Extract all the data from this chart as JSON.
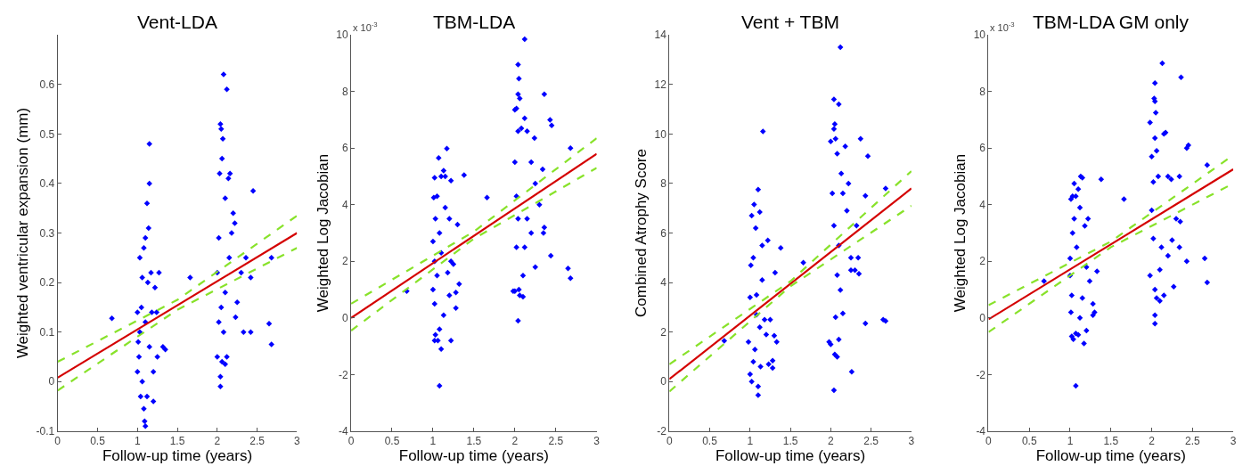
{
  "chart_data": [
    {
      "type": "scatter",
      "title": "Vent-LDA",
      "xlabel": "Follow-up time (years)",
      "ylabel": "Weighted ventricular expansion (mm)",
      "xlim": [
        0,
        3
      ],
      "xticks": [
        0,
        0.5,
        1,
        1.5,
        2,
        2.5,
        3
      ],
      "ylim": [
        -0.1,
        0.7
      ],
      "yticks": [
        -0.1,
        0,
        0.1,
        0.2,
        0.3,
        0.4,
        0.5,
        0.6
      ],
      "series": [
        {
          "marker": "diamond",
          "color": "#0000ff",
          "x": [
            1.0,
            1.02,
            1.03,
            1.05,
            1.06,
            1.08,
            1.1,
            1.12,
            1.15,
            1.15,
            1.14,
            1.0,
            1.01,
            1.04,
            1.08,
            1.09,
            1.1,
            1.12,
            1.2,
            1.06,
            1.13,
            1.17,
            1.22,
            1.1,
            1.15,
            1.2,
            1.25,
            1.27,
            1.32,
            1.35,
            1.03,
            1.18,
            1.24,
            0.68,
            1.66,
            2.0,
            2.02,
            2.03,
            2.04,
            2.05,
            2.06,
            2.07,
            2.08,
            2.12,
            2.1,
            2.14,
            2.16,
            2.04,
            2.04,
            2.06,
            2.1,
            2.12,
            2.08,
            2.02,
            2.05,
            2.1,
            2.15,
            2.2,
            2.22,
            2.25,
            2.23,
            2.3,
            2.33,
            2.36,
            2.42,
            2.42,
            2.45,
            2.65,
            2.68,
            2.68,
            2.18,
            2.0
          ],
          "values": [
            0.02,
            0.05,
            0.1,
            0.15,
            0.21,
            0.27,
            0.29,
            0.36,
            0.48,
            0.4,
            0.31,
            0.14,
            0.08,
            -0.03,
            -0.055,
            -0.08,
            -0.09,
            -0.03,
            -0.04,
            0.0,
            0.2,
            0.22,
            0.19,
            0.12,
            0.07,
            0.02,
            0.05,
            0.22,
            0.07,
            0.065,
            0.25,
            0.14,
            0.14,
            0.128,
            0.21,
            0.05,
            0.29,
            0.42,
            0.52,
            0.51,
            0.45,
            0.49,
            0.62,
            0.59,
            0.37,
            0.41,
            0.42,
            -0.01,
            0.01,
            0.04,
            0.035,
            0.05,
            0.1,
            0.12,
            0.15,
            0.18,
            0.25,
            0.34,
            0.32,
            0.16,
            0.13,
            0.22,
            0.1,
            0.25,
            0.1,
            0.21,
            0.385,
            0.117,
            0.075,
            0.25,
            0.3,
            0.22
          ]
        },
        {
          "type": "line",
          "line_style": "solid",
          "color": "#d40000",
          "x": [
            0,
            3
          ],
          "values": [
            0.008,
            0.3
          ]
        },
        {
          "type": "line",
          "line_style": "dashed",
          "color": "#88e22a",
          "x": [
            0,
            1.5,
            3
          ],
          "values": [
            0.04,
            0.165,
            0.335
          ]
        },
        {
          "type": "line",
          "line_style": "dashed",
          "color": "#88e22a",
          "x": [
            0,
            1.5,
            3
          ],
          "values": [
            -0.018,
            0.145,
            0.27
          ]
        }
      ]
    },
    {
      "type": "scatter",
      "title": "TBM-LDA",
      "xlabel": "Follow-up time (years)",
      "ylabel": "Weighted Log Jacobian",
      "annotations": [
        "x 10$^{-3}$"
      ],
      "xlim": [
        0,
        3
      ],
      "xticks": [
        0,
        0.5,
        1,
        1.5,
        2,
        2.5,
        3
      ],
      "ylim": [
        -4,
        10
      ],
      "yticks": [
        -4,
        -2,
        0,
        2,
        4,
        6,
        8,
        10
      ],
      "series": [
        {
          "marker": "diamond",
          "color": "#0000ff",
          "x": [
            1.0,
            1.01,
            1.02,
            1.05,
            1.07,
            1.1,
            1.13,
            1.15,
            1.17,
            1.22,
            1.15,
            1.03,
            1.08,
            1.02,
            1.05,
            1.0,
            1.02,
            1.03,
            1.02,
            1.06,
            1.08,
            1.1,
            1.08,
            1.22,
            1.13,
            1.2,
            1.18,
            1.22,
            1.25,
            1.28,
            1.28,
            1.32,
            1.3,
            1.38,
            1.2,
            1.1,
            0.68,
            1.66,
            1.98,
            2.0,
            2.0,
            2.02,
            2.04,
            2.04,
            2.05,
            2.06,
            2.12,
            2.12,
            2.08,
            2.04,
            2.0,
            2.02,
            2.04,
            2.02,
            2.05,
            2.04,
            2.06,
            2.1,
            2.1,
            2.12,
            2.15,
            2.15,
            2.2,
            2.2,
            2.24,
            2.25,
            2.25,
            2.3,
            2.34,
            2.35,
            2.36,
            2.36,
            2.43,
            2.45,
            2.44,
            2.65,
            2.68,
            2.68
          ],
          "values": [
            2.7,
            4.25,
            4.95,
            4.3,
            5.65,
            5.0,
            5.2,
            5.0,
            5.98,
            4.85,
            3.9,
            3.5,
            3.0,
            2.0,
            1.5,
            1.0,
            0.5,
            -0.6,
            -0.8,
            -0.8,
            -0.4,
            -1.1,
            -2.4,
            -0.8,
            0.1,
            0.8,
            1.6,
            2.0,
            1.9,
            0.35,
            0.9,
            1.2,
            3.3,
            5.05,
            3.5,
            2.3,
            0.95,
            4.25,
            0.95,
            0.95,
            7.35,
            7.4,
            7.9,
            8.95,
            8.45,
            7.75,
            9.85,
            7.05,
            6.7,
            6.6,
            5.5,
            4.3,
            3.5,
            2.5,
            1.0,
            -0.1,
            0.8,
            0.75,
            1.5,
            2.5,
            3.5,
            6.6,
            5.5,
            3.0,
            6.35,
            4.75,
            1.8,
            4.0,
            5.25,
            3.0,
            7.9,
            3.2,
            7.0,
            6.8,
            2.2,
            1.75,
            1.4,
            6.0
          ]
        },
        {
          "type": "line",
          "line_style": "solid",
          "color": "#d40000",
          "x": [
            0,
            3
          ],
          "values": [
            0,
            5.8
          ]
        },
        {
          "type": "line",
          "line_style": "dashed",
          "color": "#88e22a",
          "x": [
            0,
            1.5,
            3
          ],
          "values": [
            0.5,
            3.05,
            6.35
          ]
        },
        {
          "type": "line",
          "line_style": "dashed",
          "color": "#88e22a",
          "x": [
            0,
            1.5,
            3
          ],
          "values": [
            -0.45,
            2.8,
            5.3
          ]
        }
      ]
    },
    {
      "type": "scatter",
      "title": "Vent + TBM",
      "xlabel": "Follow-up time (years)",
      "ylabel": "Combined Atrophy Score",
      "xlim": [
        0,
        3
      ],
      "xticks": [
        0,
        0.5,
        1,
        1.5,
        2,
        2.5,
        3
      ],
      "ylim": [
        -2,
        14
      ],
      "yticks": [
        -2,
        0,
        2,
        4,
        6,
        8,
        10,
        12,
        14
      ],
      "series": [
        {
          "marker": "diamond",
          "color": "#0000ff",
          "x": [
            1.0,
            0.98,
            1.01,
            1.02,
            1.05,
            1.07,
            1.1,
            1.12,
            1.16,
            1.15,
            1.04,
            1.0,
            1.02,
            1.04,
            1.06,
            1.1,
            1.1,
            1.13,
            1.12,
            1.08,
            1.15,
            1.18,
            1.2,
            1.22,
            1.23,
            1.25,
            1.28,
            1.28,
            1.3,
            1.31,
            1.33,
            1.38,
            1.08,
            0.68,
            1.66,
            1.98,
            2.0,
            2.0,
            2.02,
            2.04,
            2.04,
            2.05,
            2.06,
            2.08,
            2.1,
            2.12,
            2.13,
            2.04,
            2.05,
            2.08,
            2.1,
            2.06,
            2.08,
            2.04,
            2.1,
            2.12,
            2.15,
            2.15,
            2.18,
            2.2,
            2.22,
            2.25,
            2.26,
            2.25,
            2.3,
            2.32,
            2.34,
            2.35,
            2.37,
            2.43,
            2.43,
            2.46,
            2.65,
            2.68,
            2.68
          ],
          "values": [
            3.4,
            1.6,
            4.7,
            6.7,
            7.15,
            6.2,
            7.75,
            6.85,
            10.1,
            5.5,
            5.0,
            0.3,
            0.0,
            0.8,
            1.3,
            -0.2,
            -0.55,
            0.6,
            2.2,
            3.5,
            4.1,
            2.5,
            1.9,
            5.7,
            0.7,
            2.5,
            0.55,
            0.85,
            1.85,
            4.4,
            1.6,
            5.4,
            2.7,
            1.65,
            4.8,
            1.6,
            1.5,
            9.7,
            7.6,
            10.2,
            11.4,
            10.4,
            9.8,
            9.2,
            11.2,
            13.5,
            8.4,
            -0.35,
            1.1,
            1.0,
            1.7,
            2.6,
            4.3,
            6.3,
            5.5,
            3.7,
            2.75,
            7.6,
            9.5,
            6.9,
            8.0,
            4.5,
            0.4,
            5.0,
            4.5,
            6.3,
            5.0,
            4.35,
            9.8,
            2.35,
            7.5,
            9.1,
            2.5,
            2.45,
            7.8
          ]
        },
        {
          "type": "line",
          "line_style": "solid",
          "color": "#d40000",
          "x": [
            0,
            3
          ],
          "values": [
            0.1,
            7.8
          ]
        },
        {
          "type": "line",
          "line_style": "dashed",
          "color": "#88e22a",
          "x": [
            0,
            1.5,
            3
          ],
          "values": [
            0.7,
            4.05,
            8.5
          ]
        },
        {
          "type": "line",
          "line_style": "dashed",
          "color": "#88e22a",
          "x": [
            0,
            1.5,
            3
          ],
          "values": [
            -0.4,
            3.85,
            7.1
          ]
        }
      ]
    },
    {
      "type": "scatter",
      "title": "TBM-LDA GM only",
      "xlabel": "Follow-up time (years)",
      "ylabel": "Weighted Log Jacobian",
      "annotations": [
        "x 10$^{-3}$"
      ],
      "xlim": [
        0,
        3
      ],
      "xticks": [
        0,
        0.5,
        1,
        1.5,
        2,
        2.5,
        3
      ],
      "ylim": [
        -4,
        10
      ],
      "yticks": [
        -4,
        -2,
        0,
        2,
        4,
        6,
        8,
        10
      ],
      "series": [
        {
          "marker": "diamond",
          "color": "#0000ff",
          "x": [
            1.0,
            1.01,
            1.03,
            1.05,
            1.07,
            1.1,
            1.13,
            1.15,
            1.12,
            1.05,
            1.03,
            1.0,
            1.02,
            1.01,
            1.02,
            1.04,
            1.07,
            1.1,
            1.17,
            1.07,
            1.12,
            1.15,
            1.2,
            1.2,
            1.22,
            1.18,
            1.24,
            1.28,
            1.28,
            1.3,
            1.33,
            1.38,
            1.08,
            0.68,
            1.66,
            1.98,
            1.98,
            2.0,
            2.02,
            2.03,
            2.04,
            2.04,
            2.05,
            2.04,
            2.13,
            2.06,
            2.08,
            2.0,
            2.02,
            2.04,
            2.04,
            2.04,
            2.06,
            2.1,
            2.1,
            2.12,
            2.15,
            2.15,
            2.17,
            2.2,
            2.2,
            2.24,
            2.25,
            2.27,
            2.3,
            2.34,
            2.34,
            2.35,
            2.36,
            2.43,
            2.45,
            2.43,
            2.65,
            2.68,
            2.68
          ],
          "values": [
            2.1,
            4.2,
            4.3,
            4.75,
            4.3,
            4.55,
            5.0,
            4.95,
            3.9,
            3.5,
            3.0,
            1.5,
            0.8,
            0.2,
            -0.65,
            -0.75,
            -0.55,
            -0.6,
            -0.9,
            -2.4,
            0.0,
            0.7,
            -0.45,
            1.8,
            3.5,
            3.25,
            1.3,
            0.5,
            0.1,
            0.2,
            1.65,
            4.9,
            2.5,
            1.3,
            4.2,
            6.9,
            1.5,
            5.7,
            4.8,
            7.75,
            7.65,
            8.3,
            7.25,
            6.35,
            9.0,
            5.9,
            5.0,
            3.8,
            2.8,
            1.0,
            0.1,
            -0.2,
            0.7,
            0.6,
            1.7,
            2.5,
            0.8,
            6.5,
            6.55,
            5.0,
            2.2,
            4.9,
            2.75,
            1.1,
            3.5,
            5.0,
            2.5,
            3.4,
            8.5,
            6.0,
            6.1,
            2.0,
            2.1,
            1.25,
            5.4
          ]
        },
        {
          "type": "line",
          "line_style": "solid",
          "color": "#d40000",
          "x": [
            0,
            3
          ],
          "values": [
            -0.05,
            5.25
          ]
        },
        {
          "type": "line",
          "line_style": "dashed",
          "color": "#88e22a",
          "x": [
            0,
            1.5,
            3
          ],
          "values": [
            0.45,
            2.7,
            5.75
          ]
        },
        {
          "type": "line",
          "line_style": "dashed",
          "color": "#88e22a",
          "x": [
            0,
            1.5,
            3
          ],
          "values": [
            -0.5,
            2.5,
            4.75
          ]
        }
      ]
    }
  ]
}
